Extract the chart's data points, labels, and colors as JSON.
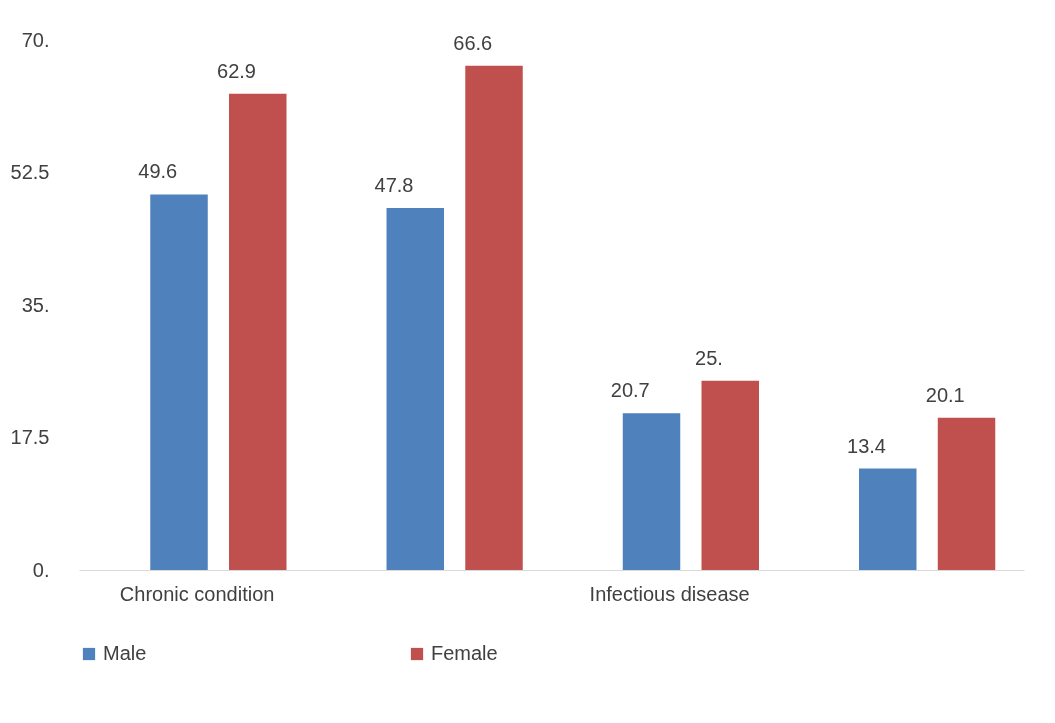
{
  "chart_data": {
    "type": "bar",
    "categories": [
      "Chronic condition",
      null,
      "Infectious disease",
      null
    ],
    "series": [
      {
        "name": "Male",
        "color": "#4f81bd",
        "values": [
          49.6,
          47.8,
          20.7,
          13.4
        ],
        "value_labels": [
          "49.6",
          "47.8",
          "20.7",
          "13.4"
        ]
      },
      {
        "name": "Female",
        "color": "#c0504d",
        "values": [
          62.9,
          66.6,
          25,
          20.1
        ],
        "value_labels": [
          "62.9",
          "66.6",
          "25.",
          "20.1"
        ]
      }
    ],
    "ylim": [
      0,
      70
    ],
    "yticks": [
      {
        "value": 0,
        "label": "0."
      },
      {
        "value": 17.5,
        "label": "17.5"
      },
      {
        "value": 35,
        "label": "35."
      },
      {
        "value": 52.5,
        "label": "52.5"
      },
      {
        "value": 70,
        "label": "70."
      }
    ],
    "grid": false,
    "legend": "bottom"
  }
}
